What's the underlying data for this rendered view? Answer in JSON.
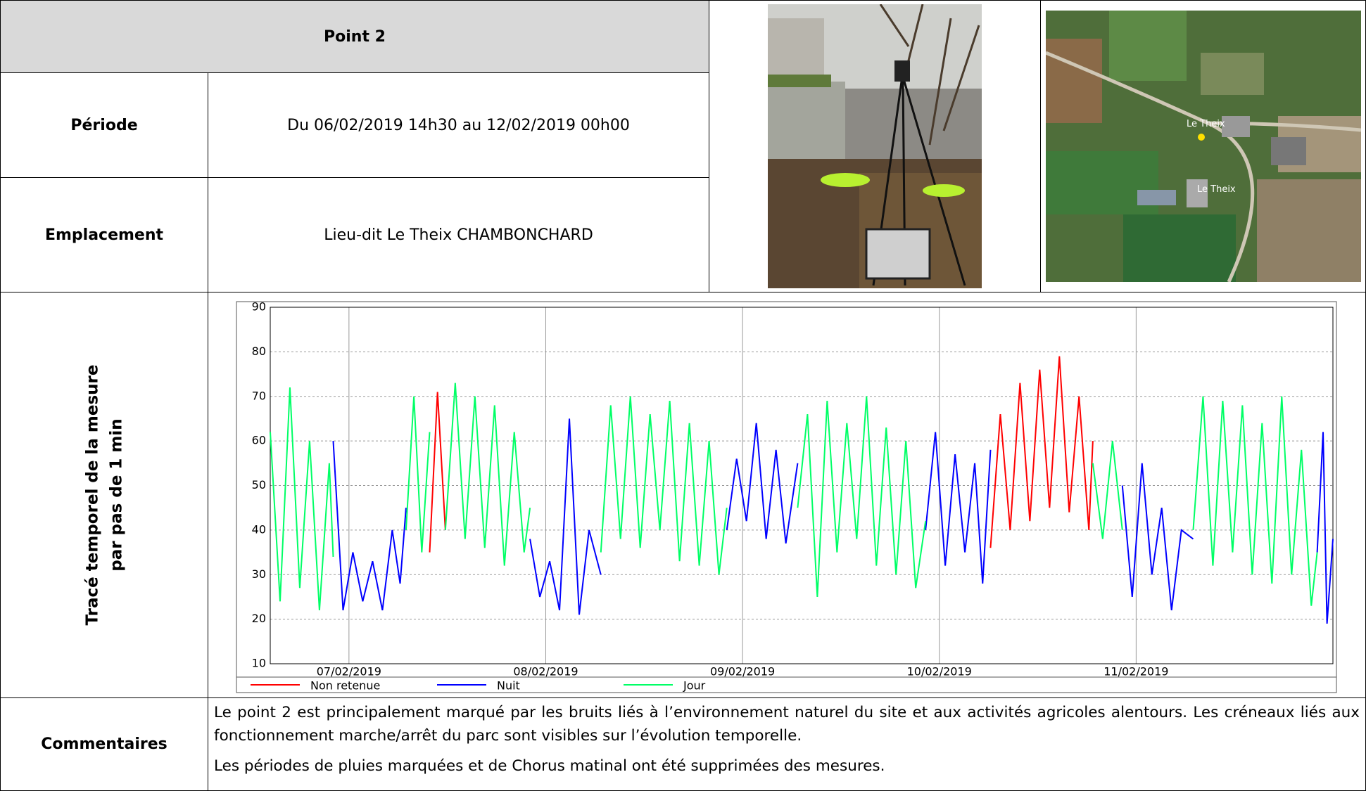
{
  "header": {
    "title": "Point 2"
  },
  "table": {
    "rows": [
      [
        "Période",
        "Du 06/02/2019 14h30 au 12/02/2019 00h00"
      ],
      [
        "Emplacement",
        "Lieu-dit Le Theix CHAMBONCHARD"
      ]
    ]
  },
  "map": {
    "labels": [
      "Le Theix",
      "Le Theix"
    ]
  },
  "chart_section": {
    "label": [
      "Tracé temporel de la mesure",
      "par pas de 1 min"
    ]
  },
  "chart_data": {
    "type": "line",
    "xlim": [
      0.6,
      6.0
    ],
    "xticks": [
      {
        "value": 1,
        "label": "07/02/2019"
      },
      {
        "value": 2,
        "label": "08/02/2019"
      },
      {
        "value": 3,
        "label": "09/02/2019"
      },
      {
        "value": 4,
        "label": "10/02/2019"
      },
      {
        "value": 5,
        "label": "11/02/2019"
      }
    ],
    "ylim": [
      10,
      90
    ],
    "yticks": [
      10,
      20,
      30,
      40,
      50,
      60,
      70,
      80,
      90
    ],
    "grid": true,
    "series": [
      {
        "name": "Non retenue",
        "color": "#ff0000",
        "x": [
          1.41,
          1.45,
          1.49,
          1.49,
          4.26,
          4.31,
          4.36,
          4.41,
          4.46,
          4.51,
          4.56,
          4.61,
          4.66,
          4.71,
          4.76,
          4.78
        ],
        "values": [
          35,
          71,
          40,
          null,
          36,
          66,
          40,
          73,
          42,
          76,
          45,
          79,
          44,
          70,
          40,
          60
        ]
      },
      {
        "name": "Nuit",
        "color": "#0000ff",
        "x": [
          0.92,
          0.97,
          1.02,
          1.07,
          1.12,
          1.17,
          1.22,
          1.26,
          1.29,
          1.29,
          1.92,
          1.97,
          2.02,
          2.07,
          2.12,
          2.17,
          2.22,
          2.28,
          2.28,
          2.92,
          2.97,
          3.02,
          3.07,
          3.12,
          3.17,
          3.22,
          3.28,
          3.28,
          3.93,
          3.98,
          4.03,
          4.08,
          4.13,
          4.18,
          4.22,
          4.26,
          4.26,
          4.93,
          4.98,
          5.03,
          5.08,
          5.13,
          5.18,
          5.23,
          5.29,
          5.29,
          5.92,
          5.95,
          5.97,
          6.0
        ],
        "values": [
          60,
          22,
          35,
          24,
          33,
          22,
          40,
          28,
          45,
          null,
          38,
          25,
          33,
          22,
          65,
          21,
          40,
          30,
          null,
          40,
          56,
          42,
          64,
          38,
          58,
          37,
          55,
          null,
          40,
          62,
          32,
          57,
          35,
          55,
          28,
          58,
          null,
          50,
          25,
          55,
          30,
          45,
          22,
          40,
          38,
          null,
          35,
          62,
          19,
          38
        ]
      },
      {
        "name": "Jour",
        "color": "#00ff66",
        "x": [
          0.6,
          0.65,
          0.7,
          0.75,
          0.8,
          0.85,
          0.9,
          0.92,
          0.92,
          1.29,
          1.33,
          1.37,
          1.41,
          1.41,
          1.49,
          1.54,
          1.59,
          1.64,
          1.69,
          1.74,
          1.79,
          1.84,
          1.89,
          1.92,
          1.92,
          2.28,
          2.33,
          2.38,
          2.43,
          2.48,
          2.53,
          2.58,
          2.63,
          2.68,
          2.73,
          2.78,
          2.83,
          2.88,
          2.92,
          2.92,
          3.28,
          3.33,
          3.38,
          3.43,
          3.48,
          3.53,
          3.58,
          3.63,
          3.68,
          3.73,
          3.78,
          3.83,
          3.88,
          3.93,
          3.93,
          4.78,
          4.83,
          4.88,
          4.93,
          4.93,
          5.29,
          5.34,
          5.39,
          5.44,
          5.49,
          5.54,
          5.59,
          5.64,
          5.69,
          5.74,
          5.79,
          5.84,
          5.89,
          5.92
        ],
        "values": [
          62,
          24,
          72,
          27,
          60,
          22,
          55,
          34,
          null,
          40,
          70,
          35,
          62,
          null,
          40,
          73,
          38,
          70,
          36,
          68,
          32,
          62,
          35,
          45,
          null,
          35,
          68,
          38,
          70,
          36,
          66,
          40,
          69,
          33,
          64,
          32,
          60,
          30,
          45,
          null,
          45,
          66,
          25,
          69,
          35,
          64,
          38,
          70,
          32,
          63,
          30,
          60,
          27,
          42,
          null,
          55,
          38,
          60,
          40,
          null,
          40,
          70,
          32,
          69,
          35,
          68,
          30,
          64,
          28,
          70,
          30,
          58,
          23,
          35
        ]
      }
    ]
  },
  "comments": {
    "label": "Commentaires",
    "paragraphs": [
      "Le point 2 est principalement marqué par les bruits liés à l’environnement naturel du site et aux activités agricoles alentours. Les créneaux liés aux fonctionnement marche/arrêt du parc sont visibles sur l’évolution temporelle.",
      "Les périodes de pluies marquées et de Chorus matinal ont été supprimées des mesures."
    ]
  }
}
